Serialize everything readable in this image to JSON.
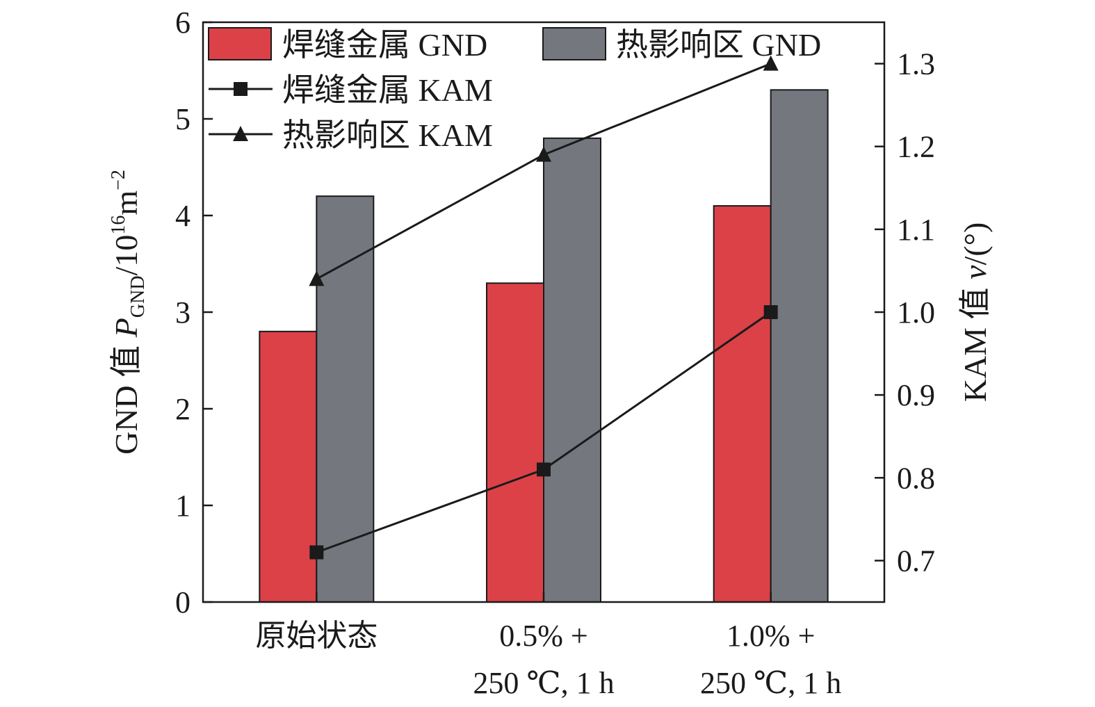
{
  "chart_data": {
    "type": "bar",
    "categories": [
      [
        "原始状态"
      ],
      [
        "0.5% +",
        "250 ℃, 1 h"
      ],
      [
        "1.0% +",
        "250 ℃, 1 h"
      ]
    ],
    "left_axis": {
      "label_prefix": "GND 值 ",
      "label_var": "P",
      "label_var_sub": "GND",
      "label_unit_base": "/10",
      "label_unit_exp": "16",
      "label_unit_m": "m",
      "label_unit_m_exp": "−2",
      "ylim": [
        0,
        6
      ],
      "ticks": [
        "0",
        "1",
        "2",
        "3",
        "4",
        "5",
        "6"
      ]
    },
    "right_axis": {
      "label_prefix": "KAM 值 ",
      "label_var": "v",
      "label_unit": "/(°)",
      "ylim": [
        0.65,
        1.35
      ],
      "ticks": [
        "0.7",
        "0.8",
        "0.9",
        "1.0",
        "1.1",
        "1.2",
        "1.3"
      ]
    },
    "bar_series": [
      {
        "name": "焊缝金属 GND",
        "color": "#dc4148",
        "values": [
          2.8,
          3.3,
          4.1
        ]
      },
      {
        "name": "热影响区 GND",
        "color": "#74777e",
        "values": [
          4.2,
          4.8,
          5.3
        ]
      }
    ],
    "line_series": [
      {
        "name": "焊缝金属 KAM",
        "marker": "square",
        "values": [
          0.71,
          0.81,
          1.0
        ]
      },
      {
        "name": "热影响区 KAM",
        "marker": "triangle",
        "values": [
          1.04,
          1.19,
          1.3
        ]
      }
    ],
    "legend_position": "top-left inside",
    "grid": false
  }
}
